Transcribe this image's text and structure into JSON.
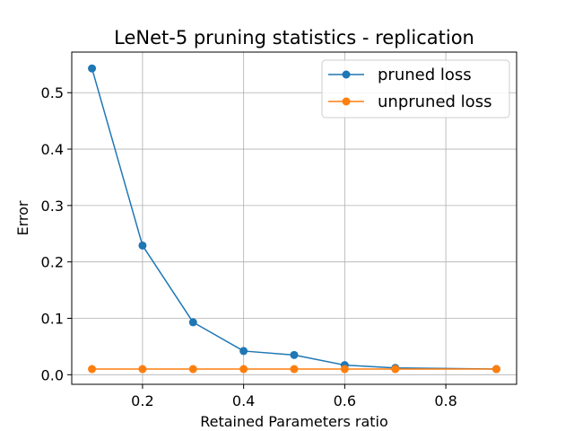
{
  "chart_data": {
    "type": "line",
    "title": "LeNet-5 pruning statistics - replication",
    "xlabel": "Retained Parameters ratio",
    "ylabel": "Error",
    "xlim": [
      0.06,
      0.94
    ],
    "ylim": [
      -0.017,
      0.572
    ],
    "xticks": [
      0.2,
      0.4,
      0.6,
      0.8
    ],
    "yticks": [
      0.0,
      0.1,
      0.2,
      0.3,
      0.4,
      0.5
    ],
    "grid": true,
    "legend_position": "top-right",
    "x": [
      0.1,
      0.2,
      0.3,
      0.4,
      0.5,
      0.6,
      0.7,
      0.9
    ],
    "series": [
      {
        "name": "pruned loss",
        "color": "#1f77b4",
        "values": [
          0.543,
          0.229,
          0.093,
          0.042,
          0.035,
          0.017,
          0.012,
          0.01
        ]
      },
      {
        "name": "unpruned loss",
        "color": "#ff7f0e",
        "values": [
          0.01,
          0.01,
          0.01,
          0.01,
          0.01,
          0.01,
          0.01,
          0.01
        ]
      }
    ]
  }
}
